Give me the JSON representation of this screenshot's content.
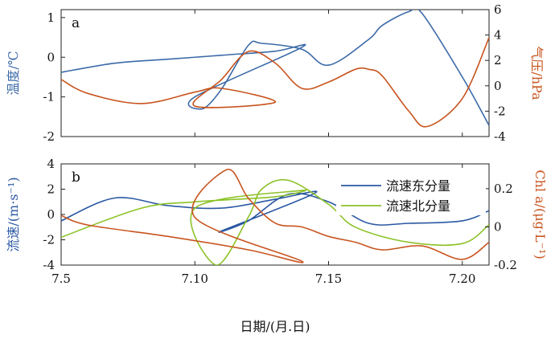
{
  "colors": {
    "temperature": "#3b6aa8",
    "pressure": "#c8541e",
    "east": "#2a58a3",
    "north": "#8cc228",
    "chl": "#c8541e",
    "axis": "#222222"
  },
  "xaxis": {
    "label": "日期/(月.日)",
    "ticks": [
      7.5,
      7.1,
      7.15,
      7.2
    ],
    "tick_labels": [
      "7.5",
      "7.10",
      "7.15",
      "7.20"
    ],
    "range": [
      7.5,
      7.21
    ]
  },
  "chart_data": [
    {
      "type": "line",
      "panel_label": "a",
      "xlabel": "",
      "ylabel_left": "温度/℃",
      "ylabel_right": "气压/hPa",
      "ylim_left": [
        -2,
        1.2
      ],
      "yticks_left": [
        -2,
        -1,
        0,
        1
      ],
      "ylim_right": [
        -4,
        6
      ],
      "yticks_right": [
        -4,
        -2,
        0,
        2,
        4,
        6
      ],
      "series": [
        {
          "axis": "left",
          "x": [
            7.0,
            7.02,
            7.04,
            7.06,
            7.08,
            7.09,
            7.1,
            7.103,
            7.11,
            7.12,
            7.125,
            7.14,
            7.15,
            7.165,
            7.17,
            7.18,
            7.185,
            7.2,
            7.21
          ],
          "values": [
            -0.38,
            -0.15,
            -0.05,
            0.05,
            0.15,
            0.25,
            -1.0,
            -1.3,
            -0.8,
            0.3,
            0.35,
            0.2,
            -0.2,
            0.45,
            0.8,
            1.15,
            1.1,
            -0.5,
            -1.72
          ]
        },
        {
          "axis": "right",
          "x": [
            7.0,
            7.01,
            7.03,
            7.05,
            7.06,
            7.08,
            7.1,
            7.11,
            7.12,
            7.13,
            7.14,
            7.15,
            7.16,
            7.165,
            7.17,
            7.18,
            7.187,
            7.2,
            7.21
          ],
          "values": [
            0.5,
            -0.6,
            -1.4,
            -0.5,
            -0.2,
            -1.3,
            -1.6,
            0.5,
            2.7,
            1.8,
            -0.2,
            0.3,
            1.3,
            1.3,
            0.8,
            -2.0,
            -3.2,
            -1.0,
            3.8
          ]
        }
      ]
    },
    {
      "type": "line",
      "panel_label": "b",
      "xlabel": "日期/(月.日)",
      "ylabel_left": "流速/(m·s⁻¹)",
      "ylabel_right": "Chl a/(μg·L⁻¹)",
      "ylim_left": [
        -4,
        4
      ],
      "yticks_left": [
        -4,
        -2,
        0,
        2,
        4
      ],
      "ylim_right": [
        -0.2,
        0.33
      ],
      "yticks_right": [
        -0.2,
        0,
        0.2
      ],
      "legend_position": "top-right",
      "series": [
        {
          "name": "流速东分量",
          "axis": "left",
          "x": [
            7.0,
            7.02,
            7.04,
            7.06,
            7.08,
            7.095,
            7.11,
            7.12,
            7.135,
            7.15,
            7.165,
            7.18,
            7.2,
            7.21
          ],
          "values": [
            -0.5,
            1.3,
            0.7,
            0.5,
            1.2,
            1.7,
            -1.3,
            -0.5,
            1.6,
            1.0,
            -0.7,
            -0.7,
            -0.5,
            0.3
          ]
        },
        {
          "name": "流速北分量",
          "axis": "left",
          "x": [
            7.0,
            7.03,
            7.05,
            7.08,
            7.09,
            7.1,
            7.108,
            7.12,
            7.125,
            7.135,
            7.15,
            7.16,
            7.18,
            7.2,
            7.21
          ],
          "values": [
            -1.8,
            0.5,
            1.0,
            1.4,
            1.9,
            0.5,
            -4.0,
            -0.2,
            2.0,
            2.7,
            0.8,
            -1.0,
            -2.2,
            -2.3,
            -0.8
          ]
        },
        {
          "axis": "right",
          "x": [
            7.0,
            7.01,
            7.04,
            7.07,
            7.09,
            7.1,
            7.112,
            7.12,
            7.13,
            7.14,
            7.15,
            7.16,
            7.17,
            7.185,
            7.2,
            7.21
          ],
          "values": [
            0.06,
            0.01,
            -0.05,
            -0.12,
            -0.18,
            0.05,
            0.3,
            0.15,
            0.02,
            0.0,
            -0.05,
            -0.08,
            -0.12,
            -0.1,
            -0.17,
            -0.08
          ]
        }
      ]
    }
  ]
}
